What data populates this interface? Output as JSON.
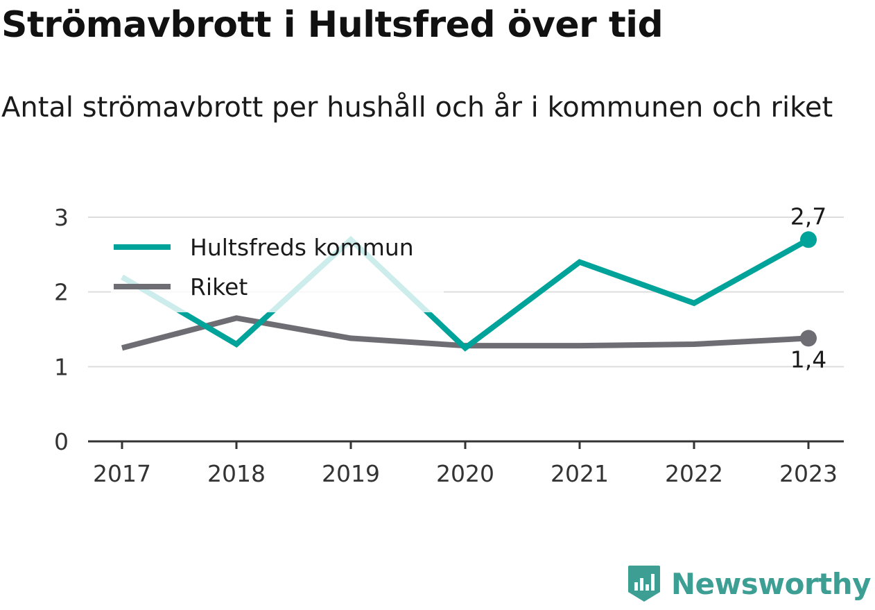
{
  "title": "Strömavbrott i Hultsfred över tid",
  "subtitle": "Antal strömavbrott per hushåll och år i kommunen och riket",
  "brand": {
    "name": "Newsworthy",
    "icon": "newsworthy-logo-icon",
    "color": "#3d9e94"
  },
  "colors": {
    "hultsfred": "#00a39a",
    "riket": "#6e6d73",
    "grid": "#dddddd",
    "axis": "#333333"
  },
  "chart_data": {
    "type": "line",
    "categories": [
      "2017",
      "2018",
      "2019",
      "2020",
      "2021",
      "2022",
      "2023"
    ],
    "y_ticks": [
      "0",
      "1",
      "2",
      "3"
    ],
    "ylim": [
      0,
      3
    ],
    "grid": true,
    "legend_position": "top-left",
    "series": [
      {
        "name": "Hultsfreds kommun",
        "values": [
          2.2,
          1.3,
          2.7,
          1.25,
          2.4,
          1.85,
          2.7
        ]
      },
      {
        "name": "Riket",
        "values": [
          1.25,
          1.65,
          1.38,
          1.28,
          1.28,
          1.3,
          1.38
        ]
      }
    ],
    "end_labels": [
      "2,7",
      "1,4"
    ]
  }
}
